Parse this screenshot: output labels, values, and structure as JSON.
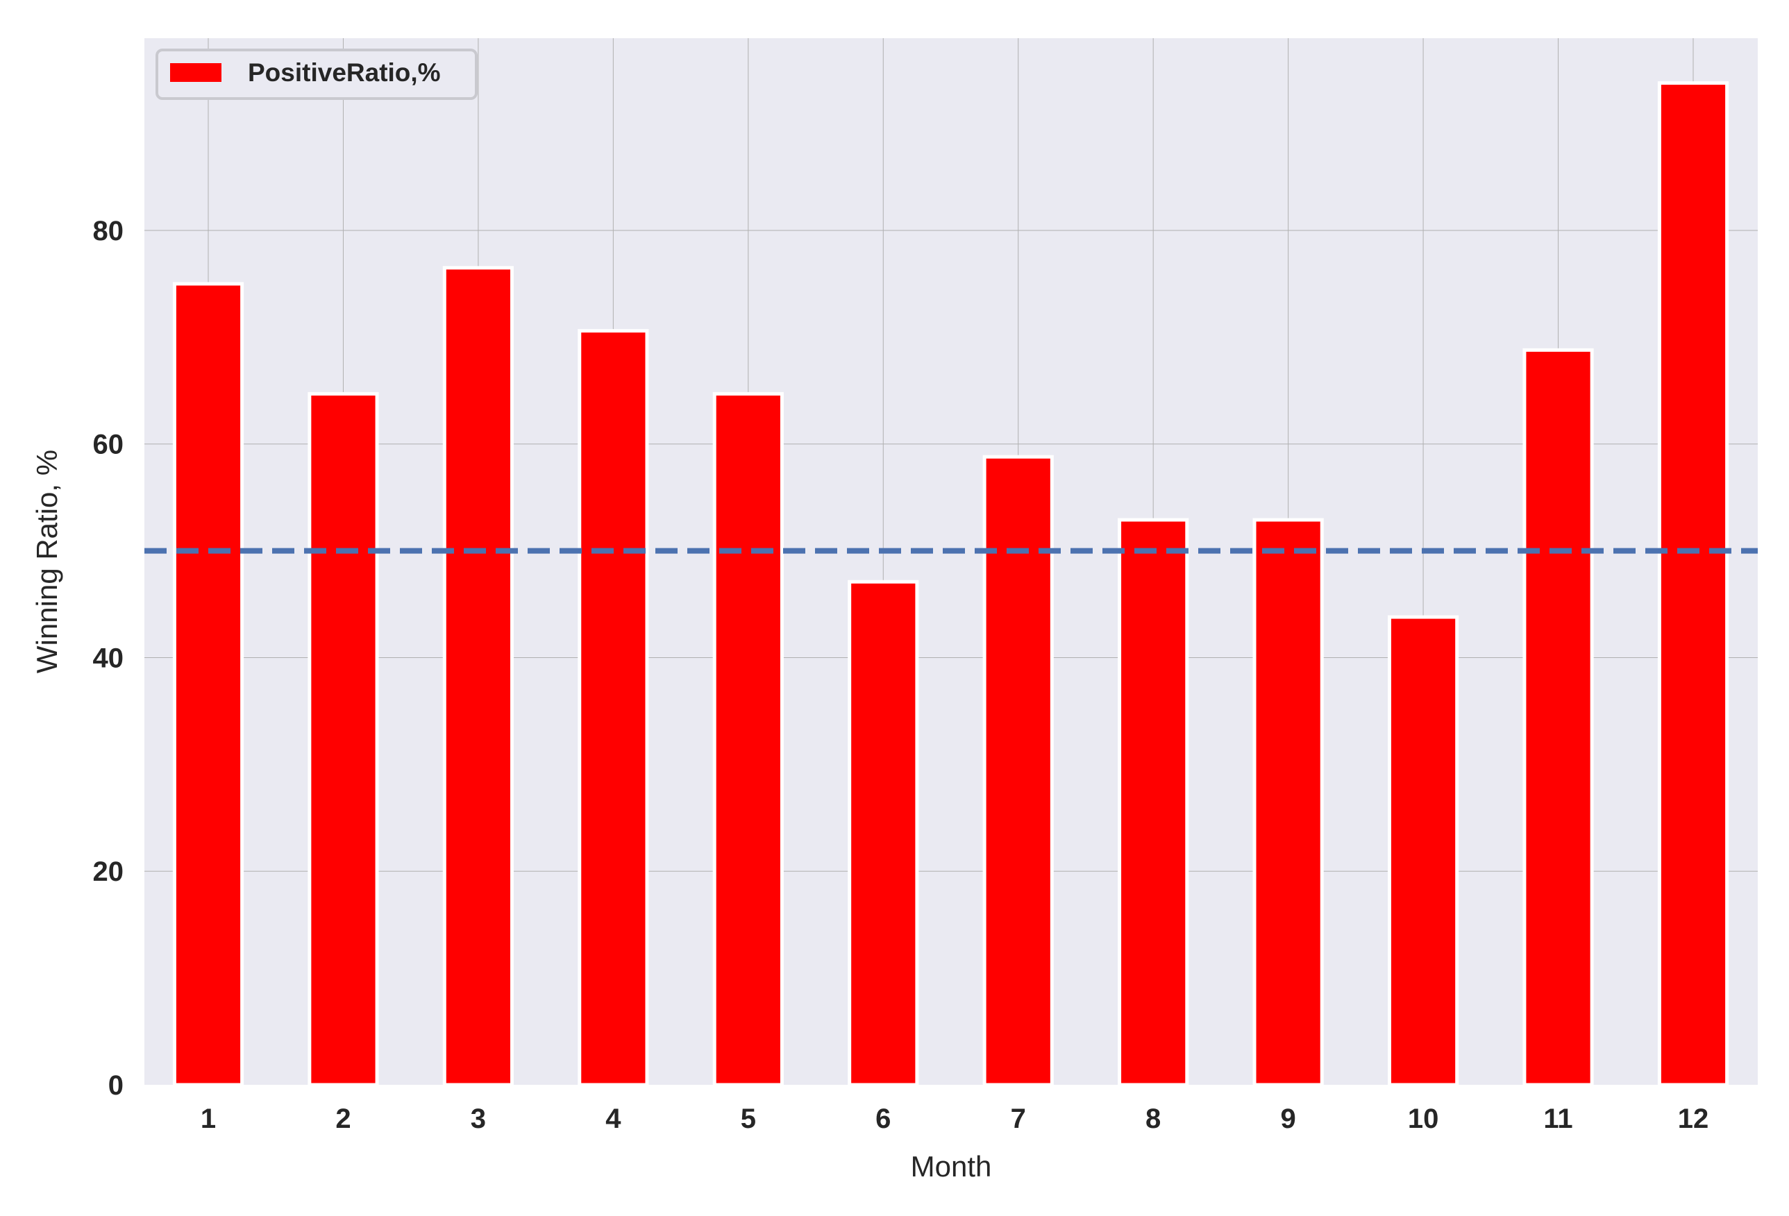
{
  "chart_data": {
    "type": "bar",
    "title": "",
    "xlabel": "Month",
    "ylabel": "Winning Ratio, %",
    "categories": [
      "1",
      "2",
      "3",
      "4",
      "5",
      "6",
      "7",
      "8",
      "9",
      "10",
      "11",
      "12"
    ],
    "series": [
      {
        "name": "PositiveRatio,%",
        "color": "#ff0000",
        "values": [
          75.0,
          64.7,
          76.5,
          70.6,
          64.7,
          47.1,
          58.8,
          52.9,
          52.9,
          43.8,
          68.8,
          93.8
        ]
      }
    ],
    "reference_line": {
      "y": 50,
      "style": "dashed",
      "color": "#4c72b0"
    },
    "ylim": [
      0,
      98
    ],
    "yticks": [
      "0",
      "20",
      "40",
      "60",
      "80"
    ],
    "grid": true,
    "legend_position": "upper-left",
    "colors": {
      "plot_background": "#eaeaf2",
      "grid": "#b0b0b0",
      "bar_edge": "#ffffff"
    }
  }
}
